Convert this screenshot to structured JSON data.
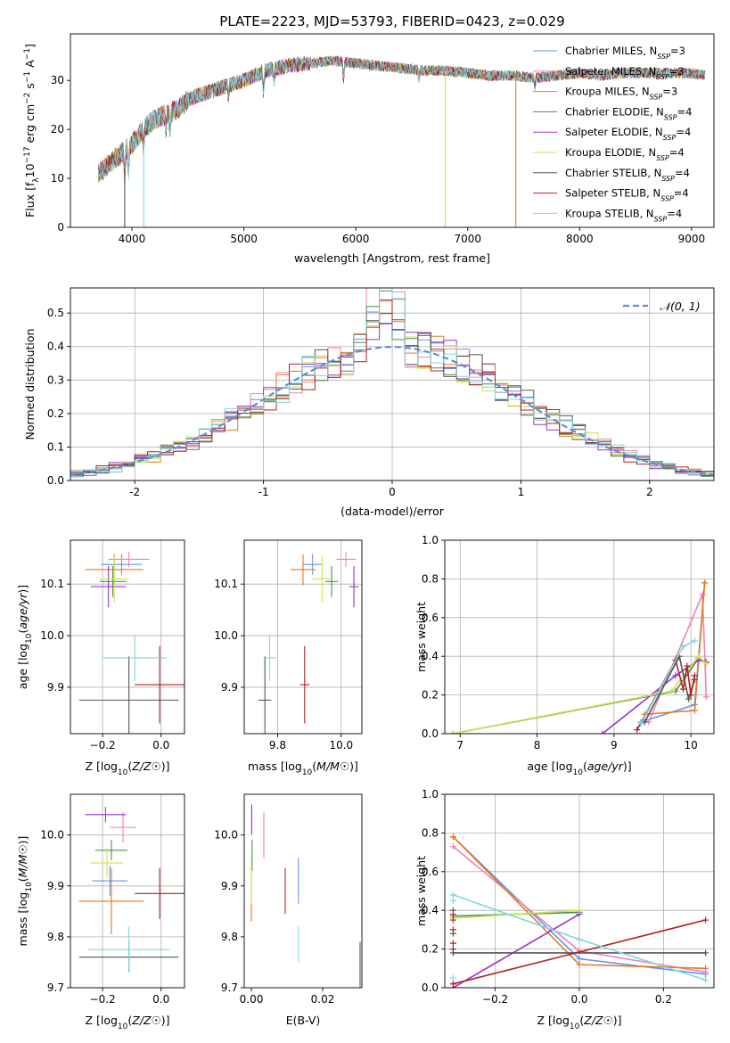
{
  "colors": {
    "chabrier_miles": "#6495ED",
    "salpeter_miles": "#F080B8",
    "kroupa_miles": "#E6781E",
    "chabrier_elodie": "#4E8B57",
    "salpeter_elodie": "#9932CC",
    "kroupa_elodie": "#C8E650",
    "chabrier_stelib": "#555555",
    "salpeter_stelib": "#B22222",
    "kroupa_stelib": "#7DD8E0",
    "normal": "#5B8FD8"
  },
  "chart_data": [
    {
      "id": "spectrum",
      "type": "line",
      "title": "PLATE=2223, MJD=53793, FIBERID=0423, z=0.029",
      "xlabel": "wavelength [Angstrom, rest frame]",
      "ylabel": "Flux [fλ10⁻¹⁷ erg cm⁻² s⁻¹ A⁻¹]",
      "xlim": [
        3450,
        9200
      ],
      "ylim": [
        0,
        39.5
      ],
      "xticks": [
        4000,
        5000,
        6000,
        7000,
        8000,
        9000
      ],
      "yticks": [
        0,
        10,
        20,
        30
      ],
      "grid": false,
      "legend_position": "right",
      "legend": [
        {
          "label": "Chabrier MILES, N",
          "sub": "SSP",
          "suffix": "=3",
          "color": "#6495ED"
        },
        {
          "label": "Salpeter MILES, N",
          "sub": "SSP",
          "suffix": "=3",
          "color": "#F080B8"
        },
        {
          "label": "Kroupa MILES, N",
          "sub": "SSP",
          "suffix": "=3",
          "color": "#E6781E"
        },
        {
          "label": "Chabrier ELODIE, N",
          "sub": "SSP",
          "suffix": "=4",
          "color": "#4E8B57"
        },
        {
          "label": "Salpeter ELODIE, N",
          "sub": "SSP",
          "suffix": "=4",
          "color": "#9932CC"
        },
        {
          "label": "Kroupa ELODIE, N",
          "sub": "SSP",
          "suffix": "=4",
          "color": "#C8E650"
        },
        {
          "label": "Chabrier STELIB, N",
          "sub": "SSP",
          "suffix": "=4",
          "color": "#555555"
        },
        {
          "label": "Salpeter STELIB, N",
          "sub": "SSP",
          "suffix": "=4",
          "color": "#B22222"
        },
        {
          "label": "Kroupa STELIB, N",
          "sub": "SSP",
          "suffix": "=4",
          "color": "#7DD8E0"
        }
      ],
      "continuum": {
        "x": [
          3700,
          3800,
          3900,
          4000,
          4100,
          4200,
          4300,
          4400,
          4500,
          4600,
          4800,
          5000,
          5200,
          5400,
          5600,
          5800,
          6000,
          6200,
          6400,
          6600,
          6800,
          7000,
          7200,
          7400,
          7600,
          7800,
          8000,
          8200,
          8400,
          8600,
          8800,
          9000,
          9100
        ],
        "y": [
          11,
          13,
          15,
          17,
          20,
          22,
          23,
          24,
          26,
          27,
          28.5,
          30,
          32,
          33,
          33.5,
          34,
          33.5,
          33,
          32.5,
          32,
          32,
          31.5,
          31,
          31,
          30.5,
          31,
          31.5,
          31,
          31.5,
          31.5,
          31.5,
          31.5,
          31
        ]
      },
      "dips": [
        {
          "x": 3935,
          "y": 0,
          "series": "chabrier_stelib"
        },
        {
          "x": 4105,
          "y": 0,
          "series": "kroupa_stelib"
        },
        {
          "x": 6800,
          "y": 0,
          "series": "kroupa_elodie"
        },
        {
          "x": 7430,
          "y": 0,
          "series": "kroupa_miles"
        }
      ]
    },
    {
      "id": "residuals",
      "type": "histogram",
      "xlabel": "(data-model)/error",
      "ylabel": "Normed distribution",
      "xlim": [
        -2.5,
        2.5
      ],
      "ylim": [
        0,
        0.575
      ],
      "xticks": [
        -2,
        -1,
        0,
        1,
        2
      ],
      "yticks": [
        0.0,
        0.1,
        0.2,
        0.3,
        0.4,
        0.5
      ],
      "grid": true,
      "legend_position": "upper right",
      "legend": [
        {
          "label": "N(0,1)",
          "color": "#5B8FD8",
          "style": "dashed"
        }
      ],
      "bin_width": 0.1,
      "reference_curve": "normal pdf, mean 0, sd 1"
    },
    {
      "id": "age_vs_Z",
      "type": "scatter",
      "xlabel": "Z [log10(Z/Z☉)]",
      "ylabel": "age [log10(age/yr)]",
      "xlim": [
        -0.31,
        0.08
      ],
      "ylim": [
        9.81,
        10.185
      ],
      "xticks": [
        -0.2,
        0.0
      ],
      "xticklabels": [
        "−0.2",
        "0.0"
      ],
      "yticks": [
        9.9,
        10.0,
        10.1
      ],
      "grid": true,
      "points": [
        {
          "series": "chabrier_miles",
          "x": -0.135,
          "xerr": 0.07,
          "y": 10.138,
          "yerr": 0.02
        },
        {
          "series": "salpeter_miles",
          "x": -0.11,
          "xerr": 0.07,
          "y": 10.148,
          "yerr": 0.015
        },
        {
          "series": "kroupa_miles",
          "x": -0.16,
          "xerr": 0.1,
          "y": 10.128,
          "yerr": 0.03
        },
        {
          "series": "chabrier_elodie",
          "x": -0.165,
          "xerr": 0.045,
          "y": 10.105,
          "yerr": 0.03
        },
        {
          "series": "salpeter_elodie",
          "x": -0.18,
          "xerr": 0.06,
          "y": 10.095,
          "yerr": 0.04
        },
        {
          "series": "kroupa_elodie",
          "x": -0.16,
          "xerr": 0.05,
          "y": 10.11,
          "yerr": 0.045
        },
        {
          "series": "chabrier_stelib",
          "x": -0.11,
          "xerr": 0.17,
          "y": 9.875,
          "yerr": 0.085
        },
        {
          "series": "salpeter_stelib",
          "x": -0.005,
          "xerr": 0.085,
          "y": 9.905,
          "yerr": 0.075
        },
        {
          "series": "kroupa_stelib",
          "x": -0.09,
          "xerr": 0.11,
          "y": 9.957,
          "yerr": 0.045
        }
      ]
    },
    {
      "id": "age_vs_mass",
      "type": "scatter",
      "xlabel": "mass [log10(M/M☉)]",
      "ylabel": "",
      "xlim": [
        9.695,
        10.065
      ],
      "ylim": [
        9.81,
        10.185
      ],
      "xticks": [
        9.8,
        10.0
      ],
      "xticklabels": [
        "9.8",
        "10.0"
      ],
      "yticks": [
        9.9,
        10.0,
        10.1
      ],
      "grid": true,
      "points": [
        {
          "series": "chabrier_miles",
          "x": 9.91,
          "xerr": 0.03,
          "y": 10.138,
          "yerr": 0.02
        },
        {
          "series": "salpeter_miles",
          "x": 10.015,
          "xerr": 0.03,
          "y": 10.148,
          "yerr": 0.015
        },
        {
          "series": "kroupa_miles",
          "x": 9.88,
          "xerr": 0.04,
          "y": 10.128,
          "yerr": 0.03
        },
        {
          "series": "chabrier_elodie",
          "x": 9.97,
          "xerr": 0.02,
          "y": 10.105,
          "yerr": 0.03
        },
        {
          "series": "salpeter_elodie",
          "x": 10.04,
          "xerr": 0.015,
          "y": 10.095,
          "yerr": 0.04
        },
        {
          "series": "kroupa_elodie",
          "x": 9.94,
          "xerr": 0.03,
          "y": 10.11,
          "yerr": 0.045
        },
        {
          "series": "chabrier_stelib",
          "x": 9.76,
          "xerr": 0.02,
          "y": 9.875,
          "yerr": 0.085
        },
        {
          "series": "salpeter_stelib",
          "x": 9.885,
          "xerr": 0.015,
          "y": 9.905,
          "yerr": 0.075
        },
        {
          "series": "kroupa_stelib",
          "x": 9.775,
          "xerr": 0.02,
          "y": 9.957,
          "yerr": 0.045
        }
      ]
    },
    {
      "id": "weight_vs_age",
      "type": "line",
      "xlabel": "age [log10(age/yr)]",
      "ylabel": "mass weight",
      "xlim": [
        6.8,
        10.3
      ],
      "ylim": [
        0,
        1.0
      ],
      "xticks": [
        7,
        8,
        9,
        10
      ],
      "yticks": [
        0.0,
        0.2,
        0.4,
        0.6,
        0.8,
        1.0
      ],
      "grid": true,
      "series": [
        {
          "series": "chabrier_miles",
          "x": [
            9.35,
            10.05,
            10.18
          ],
          "y": [
            0.06,
            0.15,
            0.78
          ]
        },
        {
          "series": "salpeter_miles",
          "x": [
            9.45,
            10.15,
            10.2
          ],
          "y": [
            0.06,
            0.72,
            0.19
          ]
        },
        {
          "series": "kroupa_miles",
          "x": [
            9.4,
            10.05,
            10.18
          ],
          "y": [
            0.1,
            0.12,
            0.78
          ]
        },
        {
          "series": "chabrier_elodie",
          "x": [
            6.9,
            9.8,
            10.1,
            10.2
          ],
          "y": [
            0.0,
            0.22,
            0.39,
            0.37
          ]
        },
        {
          "series": "salpeter_elodie",
          "x": [
            8.85,
            9.8,
            10.1,
            10.2
          ],
          "y": [
            0.0,
            0.3,
            0.38,
            0.37
          ]
        },
        {
          "series": "kroupa_elodie",
          "x": [
            6.9,
            9.75,
            10.1,
            10.2
          ],
          "y": [
            0.0,
            0.22,
            0.4,
            0.36
          ]
        },
        {
          "series": "chabrier_stelib",
          "x": [
            9.4,
            9.85,
            9.97,
            10.05
          ],
          "y": [
            0.06,
            0.4,
            0.18,
            0.28
          ]
        },
        {
          "series": "salpeter_stelib",
          "x": [
            9.3,
            9.8,
            9.9,
            9.95,
            10.0,
            10.05
          ],
          "y": [
            0.02,
            0.38,
            0.23,
            0.35,
            0.2,
            0.3
          ]
        },
        {
          "series": "kroupa_stelib",
          "x": [
            9.35,
            9.9,
            10.05
          ],
          "y": [
            0.05,
            0.45,
            0.48
          ]
        }
      ]
    },
    {
      "id": "mass_vs_Z",
      "type": "scatter",
      "xlabel": "Z [log10(Z/Z☉)]",
      "ylabel": "mass [log10(M/M☉)]",
      "xlim": [
        -0.31,
        0.08
      ],
      "ylim": [
        9.7,
        10.08
      ],
      "xticks": [
        -0.2,
        0.0
      ],
      "xticklabels": [
        "−0.2",
        "0.0"
      ],
      "yticks": [
        9.7,
        9.8,
        9.9,
        10.0
      ],
      "grid": true,
      "points": [
        {
          "series": "chabrier_miles",
          "x": -0.175,
          "xerr": 0.06,
          "y": 9.91,
          "yerr": 0.03
        },
        {
          "series": "salpeter_miles",
          "x": -0.13,
          "xerr": 0.045,
          "y": 10.015,
          "yerr": 0.03
        },
        {
          "series": "kroupa_miles",
          "x": -0.17,
          "xerr": 0.11,
          "y": 9.87,
          "yerr": 0.065
        },
        {
          "series": "chabrier_elodie",
          "x": -0.17,
          "xerr": 0.055,
          "y": 9.97,
          "yerr": 0.02
        },
        {
          "series": "salpeter_elodie",
          "x": -0.19,
          "xerr": 0.07,
          "y": 10.04,
          "yerr": 0.015
        },
        {
          "series": "kroupa_elodie",
          "x": -0.185,
          "xerr": 0.055,
          "y": 9.945,
          "yerr": 0.03
        },
        {
          "series": "chabrier_stelib",
          "x": -0.11,
          "xerr": 0.17,
          "y": 9.76,
          "yerr": 0.03
        },
        {
          "series": "salpeter_stelib",
          "x": -0.005,
          "xerr": 0.085,
          "y": 9.885,
          "yerr": 0.05
        },
        {
          "series": "kroupa_stelib",
          "x": -0.11,
          "xerr": 0.14,
          "y": 9.775,
          "yerr": 0.045
        }
      ]
    },
    {
      "id": "mass_vs_ebv",
      "type": "scatter",
      "xlabel": "E(B-V)",
      "ylabel": "",
      "xlim": [
        -0.002,
        0.031
      ],
      "ylim": [
        9.7,
        10.08
      ],
      "xticks": [
        0.0,
        0.02
      ],
      "xticklabels": [
        "0.00",
        "0.02"
      ],
      "yticks": [
        9.7,
        9.8,
        9.9,
        10.0
      ],
      "grid": false,
      "points": [
        {
          "series": "chabrier_miles",
          "x": 0.0132,
          "xerr": 0,
          "y": 9.91,
          "yerr": 0.045
        },
        {
          "series": "salpeter_miles",
          "x": 0.0035,
          "xerr": 0,
          "y": 10.0,
          "yerr": 0.045
        },
        {
          "series": "kroupa_miles",
          "x": 0.0,
          "xerr": 0,
          "y": 9.88,
          "yerr": 0.05
        },
        {
          "series": "chabrier_elodie",
          "x": 0.0002,
          "xerr": 0,
          "y": 9.96,
          "yerr": 0.03
        },
        {
          "series": "salpeter_elodie",
          "x": 0.0001,
          "xerr": 0,
          "y": 10.03,
          "yerr": 0.03
        },
        {
          "series": "kroupa_elodie",
          "x": 0.0,
          "xerr": 0,
          "y": 9.91,
          "yerr": 0.045
        },
        {
          "series": "chabrier_stelib",
          "x": 0.0305,
          "xerr": 0,
          "y": 9.735,
          "yerr": 0.055
        },
        {
          "series": "salpeter_stelib",
          "x": 0.0095,
          "xerr": 0,
          "y": 9.89,
          "yerr": 0.045
        },
        {
          "series": "kroupa_stelib",
          "x": 0.0132,
          "xerr": 0,
          "y": 9.785,
          "yerr": 0.035
        }
      ]
    },
    {
      "id": "weight_vs_Z",
      "type": "line",
      "xlabel": "Z [log10(Z/Z☉)]",
      "ylabel": "mass weight",
      "xlim": [
        -0.32,
        0.32
      ],
      "ylim": [
        0,
        1.0
      ],
      "xticks": [
        -0.2,
        0.0,
        0.2
      ],
      "xticklabels": [
        "−0.2",
        "0.0",
        "0.2"
      ],
      "yticks": [
        0.0,
        0.2,
        0.4,
        0.6,
        0.8,
        1.0
      ],
      "grid": true,
      "series": [
        {
          "series": "chabrier_miles",
          "x": [
            -0.3,
            0.0,
            0.3
          ],
          "y": [
            0.78,
            0.15,
            0.07
          ]
        },
        {
          "series": "salpeter_miles",
          "x": [
            -0.3,
            0.0,
            0.3
          ],
          "y": [
            0.73,
            0.19,
            0.08
          ]
        },
        {
          "series": "kroupa_miles",
          "x": [
            -0.3,
            0.0,
            0.3
          ],
          "y": [
            0.78,
            0.12,
            0.1
          ]
        },
        {
          "series": "chabrier_elodie",
          "x": [
            -0.3,
            0.0
          ],
          "y": [
            0.37,
            0.39
          ]
        },
        {
          "series": "salpeter_elodie",
          "x": [
            -0.3,
            0.0
          ],
          "y": [
            0.0,
            0.38
          ]
        },
        {
          "series": "kroupa_elodie",
          "x": [
            -0.3,
            0.0
          ],
          "y": [
            0.36,
            0.4
          ]
        },
        {
          "series": "chabrier_stelib",
          "x": [
            -0.3,
            0.3
          ],
          "y": [
            0.18,
            0.18
          ]
        },
        {
          "series": "salpeter_stelib",
          "x": [
            -0.3,
            0.3
          ],
          "y": [
            0.02,
            0.35
          ]
        },
        {
          "series": "kroupa_stelib",
          "x": [
            -0.3,
            0.0,
            0.3
          ],
          "y": [
            0.48,
            0.25,
            0.04
          ]
        }
      ],
      "markers_at_z_min": [
        {
          "series": "salpeter_stelib",
          "y": [
            0.02,
            0.2,
            0.23,
            0.3,
            0.35,
            0.38
          ]
        },
        {
          "series": "chabrier_stelib",
          "y": [
            0.18,
            0.28,
            0.4
          ]
        },
        {
          "series": "kroupa_stelib",
          "y": [
            0.05,
            0.45,
            0.48
          ]
        }
      ]
    }
  ]
}
